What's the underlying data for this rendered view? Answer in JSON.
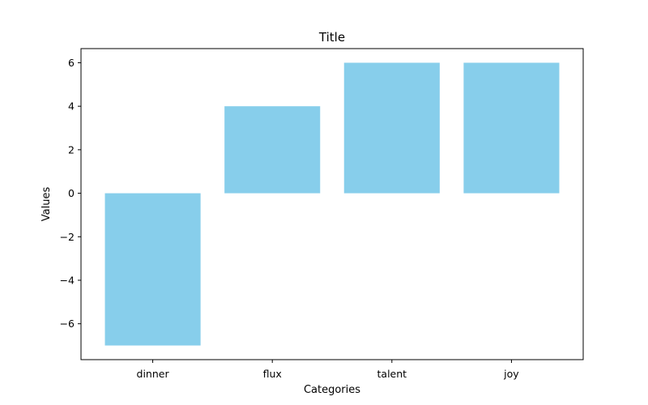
{
  "chart_data": {
    "type": "bar",
    "title": "Title",
    "xlabel": "Categories",
    "ylabel": "Values",
    "categories": [
      "dinner",
      "flux",
      "talent",
      "joy"
    ],
    "values": [
      -7,
      4,
      6,
      6
    ],
    "ylim": [
      -7.65,
      6.65
    ],
    "yticks": [
      -6,
      -4,
      -2,
      0,
      2,
      4,
      6
    ],
    "ytick_labels": [
      "−6",
      "−4",
      "−2",
      "0",
      "2",
      "4",
      "6"
    ],
    "bar_color": "#87ceeb",
    "grid": false
  }
}
